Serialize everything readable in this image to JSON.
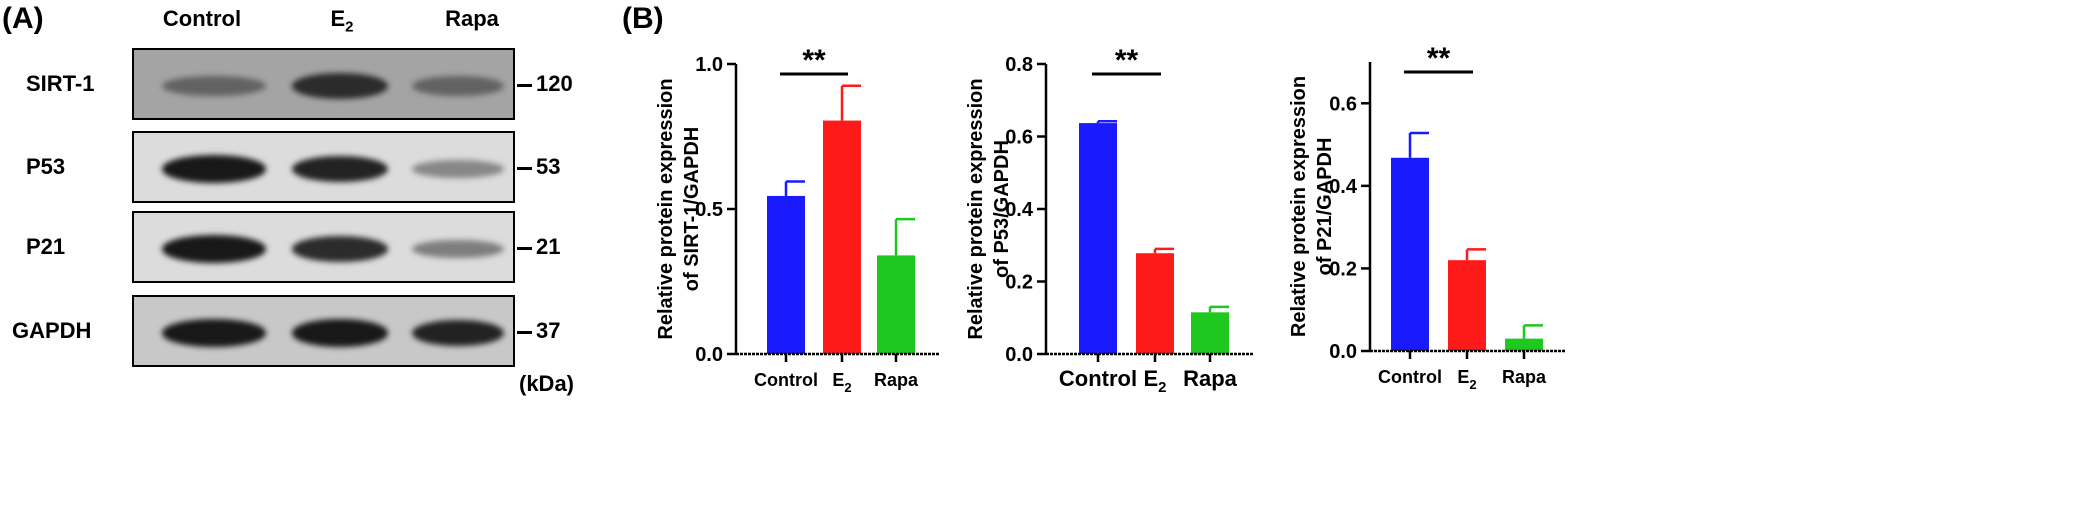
{
  "panelA": {
    "label": "(A)",
    "lanes": [
      "Control",
      "E",
      "Rapa"
    ],
    "lane_subscript": "2",
    "kda_label": "(kDa)",
    "blots": [
      {
        "protein": "SIRT-1",
        "kda": "120",
        "intensities": [
          0.55,
          0.85,
          0.55
        ]
      },
      {
        "protein": "P53",
        "kda": "53",
        "intensities": [
          0.95,
          0.9,
          0.35
        ]
      },
      {
        "protein": "P21",
        "kda": "21",
        "intensities": [
          0.95,
          0.85,
          0.4
        ]
      },
      {
        "protein": "GAPDH",
        "kda": "37",
        "intensities": [
          0.95,
          0.95,
          0.9
        ]
      }
    ]
  },
  "panelB": {
    "label": "(B)"
  },
  "colors": {
    "control": "#1a1aff",
    "e2": "#ff1a1a",
    "rapa": "#1ec81e"
  },
  "chart_data": [
    {
      "type": "bar",
      "categories": [
        "Control",
        "E2",
        "Rapa"
      ],
      "tick_labels": [
        "Control",
        "E",
        "Rapa"
      ],
      "values": [
        0.545,
        0.805,
        0.34
      ],
      "errors": [
        0.05,
        0.12,
        0.125
      ],
      "ylabel_lines": [
        "Relative protein expression",
        "of SIRT-1/GAPDH"
      ],
      "ylim": [
        0,
        1.0
      ],
      "yticks": [
        "0.0",
        "0.5",
        "1.0"
      ],
      "ytick_values": [
        0,
        0.5,
        1.0
      ],
      "significance": "**"
    },
    {
      "type": "bar",
      "categories": [
        "Control",
        "E2",
        "Rapa"
      ],
      "tick_labels": [
        "Control",
        "E",
        "Rapa"
      ],
      "values": [
        0.637,
        0.278,
        0.115
      ],
      "errors": [
        0.005,
        0.012,
        0.015
      ],
      "ylabel_lines": [
        "Relative protein expression",
        "of P53/GAPDH"
      ],
      "ylim": [
        0,
        0.8
      ],
      "yticks": [
        "0.0",
        "0.2",
        "0.4",
        "0.6",
        "0.8"
      ],
      "ytick_values": [
        0,
        0.2,
        0.4,
        0.6,
        0.8
      ],
      "significance": "**"
    },
    {
      "type": "bar",
      "categories": [
        "Control",
        "E2",
        "Rapa"
      ],
      "tick_labels": [
        "Control",
        "E",
        "Rapa"
      ],
      "values": [
        0.468,
        0.22,
        0.03
      ],
      "errors": [
        0.06,
        0.026,
        0.032
      ],
      "ylabel_lines": [
        "Relative protein expression",
        "of P21/GAPDH"
      ],
      "ylim": [
        0,
        0.7
      ],
      "yticks": [
        "0.0",
        "0.2",
        "0.4",
        "0.6"
      ],
      "ytick_values": [
        0,
        0.2,
        0.4,
        0.6
      ],
      "significance": "**"
    }
  ]
}
